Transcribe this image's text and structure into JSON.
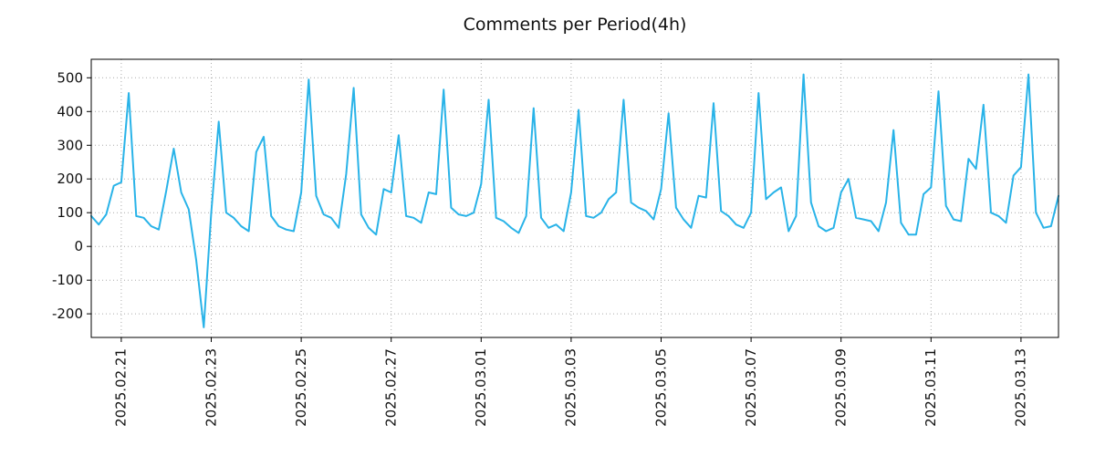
{
  "chart_data": {
    "type": "line",
    "title": "Comments per Period(4h)",
    "series_name": "comments",
    "interval_hours": 4,
    "start": "2025-02-20 08:00",
    "line_color": "#29b3e8",
    "grid": true,
    "grid_color": "#aaaaaa",
    "axis_color": "#000000",
    "ylim": [
      -270,
      555
    ],
    "y_ticks": [
      -200,
      -100,
      0,
      100,
      200,
      300,
      400,
      500
    ],
    "x_tick_indices": [
      4,
      16,
      28,
      40,
      52,
      64,
      76,
      88,
      100,
      112,
      124
    ],
    "x_tick_labels": [
      "2025.02.21",
      "2025.02.23",
      "2025.02.25",
      "2025.02.27",
      "2025.03.01",
      "2025.03.03",
      "2025.03.05",
      "2025.03.07",
      "2025.03.09",
      "2025.03.11",
      "2025.03.13"
    ],
    "values": [
      90,
      65,
      95,
      180,
      190,
      455,
      90,
      85,
      60,
      50,
      165,
      290,
      160,
      110,
      -40,
      -240,
      100,
      370,
      100,
      85,
      60,
      45,
      280,
      325,
      90,
      60,
      50,
      45,
      160,
      495,
      150,
      95,
      85,
      55,
      215,
      470,
      95,
      55,
      35,
      170,
      160,
      330,
      90,
      85,
      70,
      160,
      155,
      465,
      115,
      95,
      90,
      100,
      185,
      435,
      85,
      75,
      55,
      40,
      90,
      410,
      85,
      55,
      65,
      45,
      160,
      405,
      90,
      85,
      100,
      140,
      160,
      435,
      130,
      115,
      105,
      80,
      170,
      395,
      115,
      80,
      55,
      150,
      145,
      425,
      105,
      90,
      65,
      55,
      100,
      455,
      140,
      160,
      175,
      45,
      90,
      510,
      130,
      60,
      45,
      55,
      160,
      200,
      85,
      80,
      75,
      45,
      130,
      345,
      70,
      35,
      35,
      155,
      175,
      460,
      120,
      80,
      75,
      260,
      230,
      420,
      100,
      90,
      70,
      210,
      235,
      510,
      100,
      55,
      60,
      150
    ]
  }
}
